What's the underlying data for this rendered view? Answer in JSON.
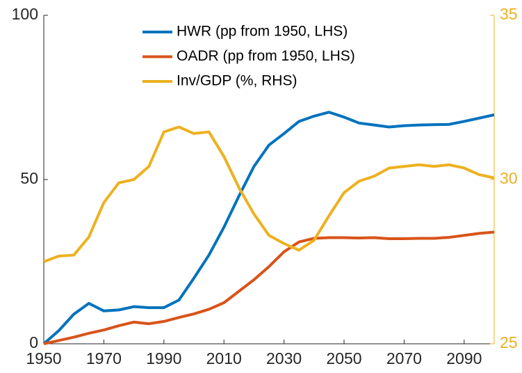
{
  "chart_data": {
    "type": "line",
    "x": [
      1950,
      1955,
      1960,
      1965,
      1970,
      1975,
      1980,
      1985,
      1990,
      1995,
      2000,
      2005,
      2010,
      2015,
      2020,
      2025,
      2030,
      2035,
      2040,
      2045,
      2050,
      2055,
      2060,
      2065,
      2070,
      2075,
      2080,
      2085,
      2090,
      2095,
      2100
    ],
    "xlim": [
      1950,
      2100
    ],
    "xticks": [
      1950,
      1970,
      1990,
      2010,
      2030,
      2050,
      2070,
      2090
    ],
    "ylim": [
      0,
      100
    ],
    "yticks": [
      0,
      50,
      100
    ],
    "y2lim": [
      25,
      35
    ],
    "y2ticks": [
      25,
      30,
      35
    ],
    "y2color": "#EDB120",
    "series": [
      {
        "name": "HWR (pp from 1950, LHS)",
        "color": "#0072BD",
        "values": [
          0,
          4,
          9,
          12.3,
          10,
          10.3,
          11.3,
          11,
          11,
          13.3,
          20,
          27,
          35.5,
          45,
          54,
          60.5,
          64,
          67.7,
          69.3,
          70.5,
          69,
          67.2,
          66.6,
          66,
          66.4,
          66.6,
          66.7,
          66.8,
          67.7,
          68.7,
          69.7
        ]
      },
      {
        "name": "OADR (pp from 1950, LHS)",
        "color": "#D95319",
        "values": [
          0,
          1,
          2,
          3.2,
          4.2,
          5.5,
          6.6,
          6.1,
          6.8,
          8,
          9.1,
          10.5,
          12.5,
          16,
          19.5,
          23.5,
          28,
          31,
          32.1,
          32.3,
          32.3,
          32.2,
          32.3,
          32,
          32,
          32.1,
          32.1,
          32.4,
          33,
          33.6,
          34
        ]
      },
      {
        "name": "Inv/GDP (%, RHS)",
        "color": "#EDB120",
        "axis": "y2",
        "values": [
          27.5,
          27.67,
          27.7,
          28.25,
          29.3,
          29.9,
          30,
          30.4,
          31.45,
          31.6,
          31.4,
          31.45,
          30.7,
          29.75,
          28.95,
          28.3,
          28.05,
          27.85,
          28.15,
          28.9,
          29.6,
          29.95,
          30.1,
          30.35,
          30.4,
          30.45,
          30.4,
          30.45,
          30.35,
          30.15,
          30.05
        ]
      }
    ]
  }
}
